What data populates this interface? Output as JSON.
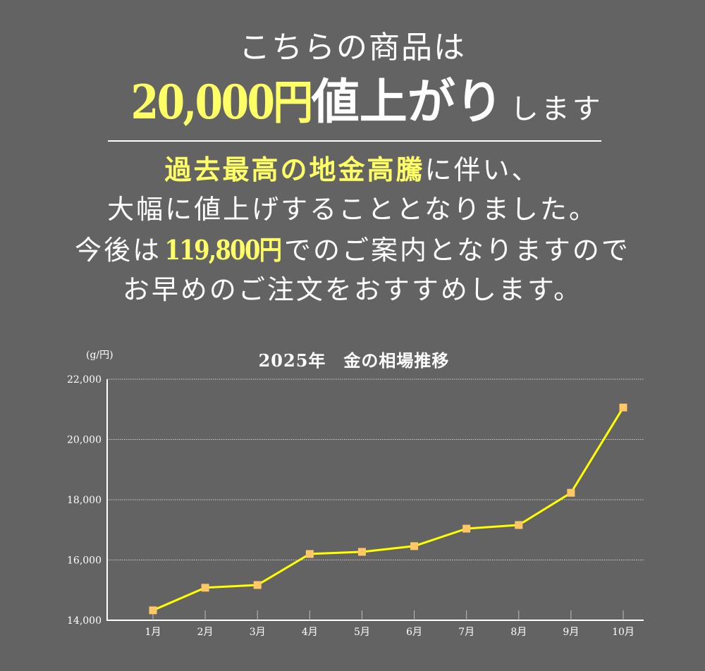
{
  "header": {
    "line1": "こちらの商品は",
    "price_increase": "20,000円",
    "rise_word": "値上がり",
    "rise_tail": "します"
  },
  "body": {
    "line1_emphasis": "過去最高の地金高騰",
    "line1_rest": "に伴い、",
    "line2": "大幅に値上げすることとなりました。",
    "line3_prefix": "今後は",
    "line3_price": "119,800円",
    "line3_rest": "でのご案内となりますので",
    "line4": "お早めのご注文をおすすめします。"
  },
  "colors": {
    "background": "#636363",
    "accent_yellow": "#ffff66",
    "line": "#ffff00",
    "marker": "#ffc766",
    "text": "#ffffff"
  },
  "chart_data": {
    "type": "line",
    "title": "2025年　金の相場推移",
    "xlabel": "",
    "ylabel": "(g/円)",
    "categories": [
      "1月",
      "2月",
      "3月",
      "4月",
      "5月",
      "6月",
      "7月",
      "8月",
      "9月",
      "10月"
    ],
    "series": [
      {
        "name": "金の相場",
        "values": [
          14330,
          15080,
          15170,
          16200,
          16270,
          16460,
          17040,
          17160,
          18230,
          21060
        ]
      }
    ],
    "ylim": [
      14000,
      22000
    ],
    "yticks": [
      14000,
      16000,
      18000,
      20000,
      22000
    ],
    "ytick_labels": [
      "14,000",
      "16,000",
      "18,000",
      "20,000",
      "22,000"
    ],
    "grid": true,
    "grid_style": "dotted",
    "legend": "none"
  }
}
